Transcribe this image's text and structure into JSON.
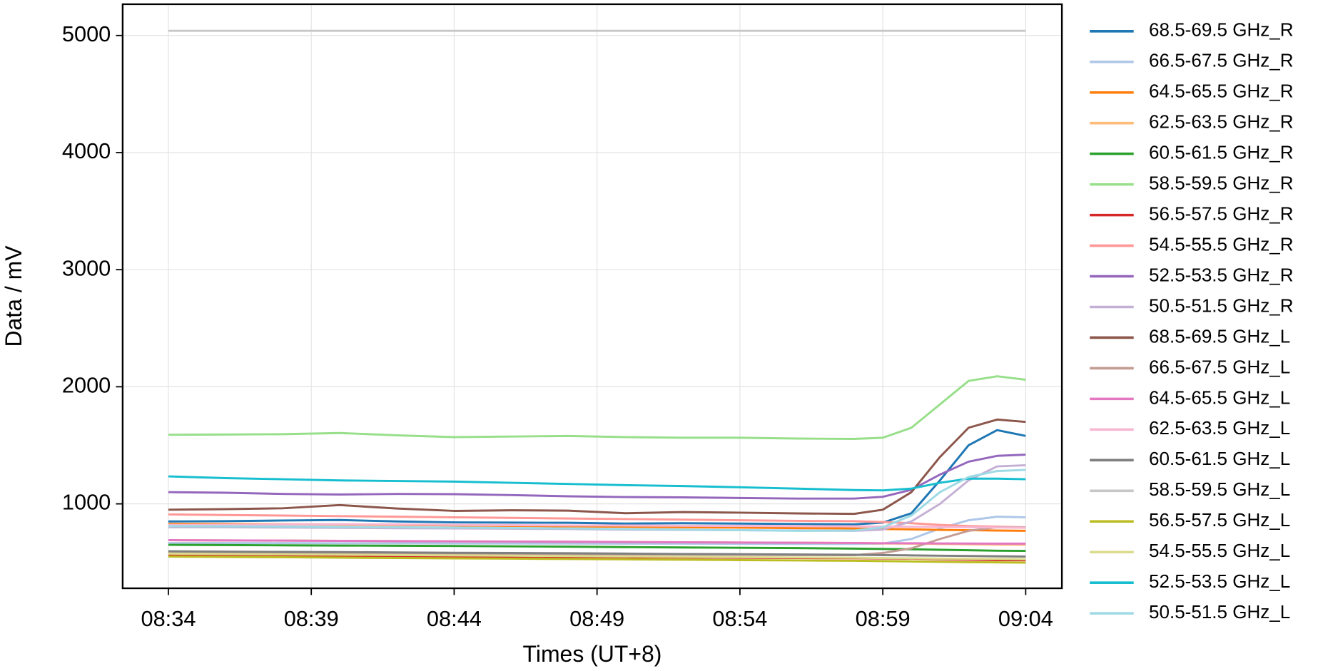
{
  "chart_data": {
    "type": "line",
    "x_label": "Times (UT+8)",
    "y_label": "Data / mV",
    "x": [
      "08:34",
      "08:36",
      "08:38",
      "08:40",
      "08:42",
      "08:44",
      "08:46",
      "08:48",
      "08:50",
      "08:52",
      "08:54",
      "08:56",
      "08:58",
      "08:59",
      "09:00",
      "09:01",
      "09:02",
      "09:03",
      "09:04"
    ],
    "xlim": [
      "08:32:24",
      "09:05:16"
    ],
    "xticks": [
      "08:34",
      "08:39",
      "08:44",
      "08:49",
      "08:54",
      "08:59",
      "09:04"
    ],
    "ylim": [
      279,
      5267
    ],
    "yticks": [
      1000,
      2000,
      3000,
      4000,
      5000
    ],
    "grid": true,
    "legend": "outside right",
    "series": [
      {
        "name": "68.5-69.5 GHz_R",
        "color": "#1f77b4",
        "values": [
          850,
          852,
          858,
          862,
          850,
          842,
          840,
          838,
          832,
          835,
          832,
          828,
          825,
          840,
          920,
          1200,
          1500,
          1630,
          1580
        ]
      },
      {
        "name": "66.5-67.5 GHz_R",
        "color": "#aec7e8",
        "values": [
          665,
          665,
          665,
          664,
          663,
          662,
          662,
          661,
          660,
          660,
          659,
          658,
          658,
          660,
          700,
          790,
          860,
          890,
          885
        ]
      },
      {
        "name": "64.5-65.5 GHz_R",
        "color": "#ff7f0e",
        "values": [
          830,
          828,
          826,
          823,
          820,
          815,
          812,
          808,
          805,
          800,
          797,
          793,
          790,
          785,
          782,
          778,
          775,
          772,
          770
        ]
      },
      {
        "name": "62.5-63.5 GHz_R",
        "color": "#ffbb78",
        "values": [
          690,
          688,
          686,
          684,
          682,
          680,
          678,
          676,
          674,
          672,
          670,
          668,
          665,
          662,
          660,
          658,
          655,
          652,
          650
        ]
      },
      {
        "name": "60.5-61.5 GHz_R",
        "color": "#2ca02c",
        "values": [
          650,
          648,
          646,
          644,
          642,
          640,
          637,
          634,
          631,
          628,
          625,
          622,
          618,
          615,
          612,
          608,
          604,
          600,
          598
        ]
      },
      {
        "name": "58.5-59.5 GHz_R",
        "color": "#98df8a",
        "values": [
          1590,
          1592,
          1595,
          1605,
          1585,
          1570,
          1575,
          1580,
          1570,
          1565,
          1565,
          1558,
          1555,
          1565,
          1650,
          1850,
          2050,
          2090,
          2060
        ]
      },
      {
        "name": "56.5-57.5 GHz_R",
        "color": "#d62728",
        "values": [
          560,
          558,
          556,
          554,
          552,
          550,
          548,
          546,
          544,
          542,
          540,
          538,
          536,
          534,
          532,
          528,
          524,
          520,
          518
        ]
      },
      {
        "name": "54.5-55.5 GHz_R",
        "color": "#ff9896",
        "values": [
          910,
          905,
          900,
          895,
          890,
          885,
          880,
          875,
          870,
          865,
          860,
          855,
          852,
          845,
          835,
          820,
          810,
          805,
          800
        ]
      },
      {
        "name": "52.5-53.5 GHz_R",
        "color": "#9467bd",
        "values": [
          1100,
          1095,
          1085,
          1080,
          1085,
          1083,
          1075,
          1065,
          1058,
          1055,
          1050,
          1045,
          1045,
          1060,
          1120,
          1250,
          1360,
          1410,
          1420
        ]
      },
      {
        "name": "50.5-51.5 GHz_R",
        "color": "#c5b0d5",
        "values": [
          800,
          800,
          798,
          795,
          792,
          790,
          788,
          785,
          780,
          778,
          775,
          772,
          770,
          780,
          850,
          1000,
          1200,
          1320,
          1330
        ]
      },
      {
        "name": "68.5-69.5 GHz_L",
        "color": "#8c564b",
        "values": [
          950,
          955,
          962,
          990,
          960,
          940,
          945,
          942,
          920,
          930,
          925,
          918,
          915,
          950,
          1100,
          1400,
          1650,
          1720,
          1700
        ]
      },
      {
        "name": "66.5-67.5 GHz_L",
        "color": "#c49c94",
        "values": [
          585,
          583,
          581,
          579,
          577,
          575,
          573,
          571,
          569,
          567,
          565,
          563,
          562,
          580,
          620,
          700,
          770,
          800,
          800
        ]
      },
      {
        "name": "64.5-65.5 GHz_L",
        "color": "#e377c2",
        "values": [
          690,
          688,
          686,
          684,
          682,
          680,
          678,
          676,
          674,
          672,
          670,
          668,
          666,
          664,
          663,
          662,
          661,
          660,
          660
        ]
      },
      {
        "name": "62.5-63.5 GHz_L",
        "color": "#f7b6d2",
        "values": [
          820,
          822,
          825,
          826,
          824,
          820,
          818,
          816,
          815,
          813,
          812,
          810,
          808,
          806,
          804,
          802,
          800,
          798,
          796
        ]
      },
      {
        "name": "60.5-61.5 GHz_L",
        "color": "#7f7f7f",
        "values": [
          595,
          592,
          590,
          588,
          585,
          582,
          580,
          578,
          575,
          572,
          570,
          567,
          565,
          562,
          560,
          557,
          555,
          552,
          550
        ]
      },
      {
        "name": "58.5-59.5 GHz_L",
        "color": "#c7c7c7",
        "values": [
          5040,
          5040,
          5040,
          5040,
          5040,
          5040,
          5040,
          5040,
          5040,
          5040,
          5040,
          5040,
          5040,
          5040,
          5040,
          5040,
          5040,
          5040,
          5040
        ]
      },
      {
        "name": "56.5-57.5 GHz_L",
        "color": "#bcbd22",
        "values": [
          550,
          547,
          544,
          541,
          538,
          535,
          532,
          529,
          526,
          523,
          520,
          517,
          514,
          511,
          508,
          505,
          502,
          500,
          498
        ]
      },
      {
        "name": "54.5-55.5 GHz_L",
        "color": "#dbdb8d",
        "values": [
          575,
          572,
          569,
          566,
          563,
          560,
          557,
          554,
          551,
          548,
          545,
          542,
          540,
          537,
          535,
          533,
          531,
          529,
          527
        ]
      },
      {
        "name": "52.5-53.5 GHz_L",
        "color": "#17becf",
        "values": [
          1235,
          1220,
          1210,
          1200,
          1195,
          1190,
          1180,
          1170,
          1160,
          1152,
          1142,
          1130,
          1118,
          1115,
          1130,
          1180,
          1215,
          1215,
          1210
        ]
      },
      {
        "name": "50.5-51.5 GHz_L",
        "color": "#9edae5",
        "values": [
          810,
          808,
          806,
          804,
          800,
          797,
          793,
          790,
          785,
          780,
          775,
          770,
          772,
          800,
          900,
          1100,
          1230,
          1280,
          1290
        ]
      }
    ]
  }
}
